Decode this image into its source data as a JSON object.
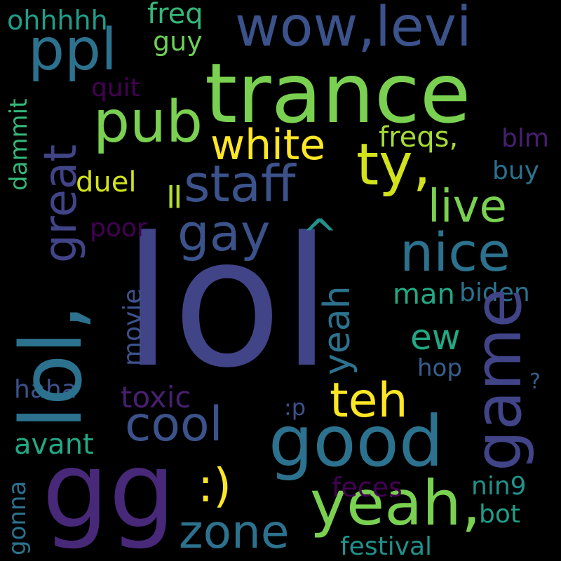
{
  "words": {
    "lol_big": {
      "text": "lol",
      "color": "#414487"
    },
    "trance": {
      "text": "trance",
      "color": "#7ad151"
    },
    "lol_side": {
      "text": "lol,",
      "color": "#2c728e"
    },
    "gg": {
      "text": "gg",
      "color": "#482878"
    },
    "good": {
      "text": "good",
      "color": "#2c728e"
    },
    "yeah_c": {
      "text": "yeah,",
      "color": "#7ad151"
    },
    "wowlevi": {
      "text": "wow,levi",
      "color": "#3b528b"
    },
    "ppl": {
      "text": "ppl",
      "color": "#2c728e"
    },
    "pub": {
      "text": "pub",
      "color": "#7ad151"
    },
    "ty": {
      "text": "ty,",
      "color": "#d2e21b"
    },
    "staff": {
      "text": "staff",
      "color": "#3b528b"
    },
    "white": {
      "text": "white",
      "color": "#fde725"
    },
    "gay": {
      "text": "gay",
      "color": "#3b528b"
    },
    "nice": {
      "text": "nice",
      "color": "#2c728e"
    },
    "live": {
      "text": "live",
      "color": "#7ad151"
    },
    "caret": {
      "text": "^",
      "color": "#21918c"
    },
    "game": {
      "text": "game",
      "color": "#414487"
    },
    "teh": {
      "text": "teh",
      "color": "#fde725"
    },
    "cool": {
      "text": "cool",
      "color": "#3b528b"
    },
    "zone": {
      "text": "zone",
      "color": "#2c728e"
    },
    "smiley": {
      "text": ":)",
      "color": "#fde725"
    },
    "great": {
      "text": "great",
      "color": "#414487"
    },
    "yeah_v": {
      "text": "yeah",
      "color": "#2c728e"
    },
    "equals": {
      "text": "=",
      "color": "#b5de2b"
    },
    "ew": {
      "text": "ew",
      "color": "#22a884"
    },
    "freqs": {
      "text": "freqs,",
      "color": "#a5db36"
    },
    "duel": {
      "text": "duel",
      "color": "#d2e21b"
    },
    "freq": {
      "text": "freq",
      "color": "#35b779"
    },
    "guy": {
      "text": "guy",
      "color": "#6ece58"
    },
    "ohhhhh": {
      "text": "ohhhhh",
      "color": "#1f9e89"
    },
    "quit": {
      "text": "quit",
      "color": "#440154"
    },
    "dammit": {
      "text": "dammit",
      "color": "#35b779"
    },
    "blm": {
      "text": "blm",
      "color": "#481f70"
    },
    "buy": {
      "text": "buy",
      "color": "#2c728e"
    },
    "poor": {
      "text": "poor",
      "color": "#440154"
    },
    "man": {
      "text": "man",
      "color": "#22a884"
    },
    "biden": {
      "text": "biden",
      "color": "#2c728e"
    },
    "movie": {
      "text": "movie",
      "color": "#3b528b"
    },
    "hop": {
      "text": "hop",
      "color": "#355f8d"
    },
    "haha": {
      "text": "haha",
      "color": "#3b528b"
    },
    "toxic": {
      "text": "toxic",
      "color": "#481f70"
    },
    "question": {
      "text": "?",
      "color": "#355f8d"
    },
    "tongue": {
      "text": ":p",
      "color": "#3b528b"
    },
    "avant": {
      "text": "avant",
      "color": "#22a884"
    },
    "gonna": {
      "text": "gonna",
      "color": "#2c728e"
    },
    "feces": {
      "text": "feces",
      "color": "#440154"
    },
    "nin9": {
      "text": "nin9",
      "color": "#21918c"
    },
    "bot": {
      "text": "bot",
      "color": "#1f9e89"
    },
    "festival": {
      "text": "festival",
      "color": "#21918c"
    }
  }
}
